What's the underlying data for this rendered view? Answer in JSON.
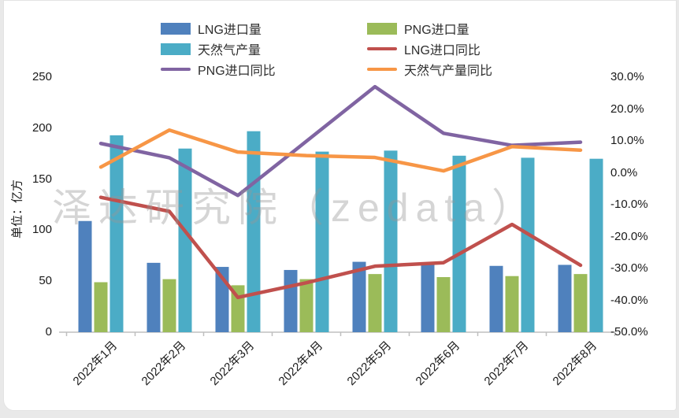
{
  "watermark": {
    "text": "泽达研究院（zedata）"
  },
  "chart_data": {
    "type": "combo_bar_line",
    "title": "",
    "categories": [
      "2022年1月",
      "2022年2月",
      "2022年3月",
      "2022年4月",
      "2022年5月",
      "2022年6月",
      "2022年7月",
      "2022年8月"
    ],
    "left_axis": {
      "title": "单位：亿方",
      "ticks": [
        0,
        50,
        100,
        150,
        200,
        250
      ],
      "min": 0,
      "max": 250
    },
    "right_axis": {
      "ticks": [
        "30.0%",
        "20.0%",
        "10.0%",
        "0.0%",
        "-10.0%",
        "-20.0%",
        "-30.0%",
        "-40.0%",
        "-50.0%"
      ],
      "min_pct": -50,
      "max_pct": 30
    },
    "grid": false,
    "legend_position": "top",
    "series": [
      {
        "name": "LNG进口量",
        "type": "bar",
        "axis": "left",
        "color": "#4f81bd",
        "values": [
          109,
          68,
          64,
          61,
          69,
          66,
          65,
          66
        ]
      },
      {
        "name": "PNG进口量",
        "type": "bar",
        "axis": "left",
        "color": "#9bbb59",
        "values": [
          49,
          52,
          46,
          52,
          57,
          54,
          55,
          57
        ]
      },
      {
        "name": "天然气产量",
        "type": "bar",
        "axis": "left",
        "color": "#4bacc6",
        "values": [
          193,
          180,
          197,
          177,
          178,
          173,
          171,
          170
        ]
      },
      {
        "name": "LNG进口同比",
        "type": "line",
        "axis": "right",
        "color": "#c0504d",
        "values_pct": [
          -7.7,
          -12.1,
          -39.1,
          -34.5,
          -29.3,
          -28.2,
          -16.2,
          -29.0
        ]
      },
      {
        "name": "PNG进口同比",
        "type": "line",
        "axis": "right",
        "color": "#8064a2",
        "values_pct": [
          9.2,
          4.7,
          -7.1,
          9.9,
          27.0,
          12.4,
          8.6,
          9.6
        ]
      },
      {
        "name": "天然气产量同比",
        "type": "line",
        "axis": "right",
        "color": "#f79646",
        "values_pct": [
          1.8,
          13.4,
          6.5,
          5.4,
          4.8,
          0.6,
          8.2,
          7.1
        ]
      }
    ],
    "axis_colors": {
      "axis_line": "#bfbfbf",
      "tick_text": "#1a1a1a"
    }
  }
}
